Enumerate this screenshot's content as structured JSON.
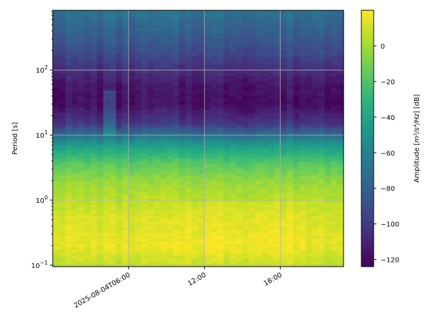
{
  "chart_data": {
    "type": "heatmap",
    "title": "",
    "ylabel": "Period [s]",
    "yscale": "log",
    "ylim": [
      0.095,
      830
    ],
    "y_ticks": [
      {
        "value": 0.1,
        "base": "10",
        "exp": "−1"
      },
      {
        "value": 1,
        "base": "10",
        "exp": "0"
      },
      {
        "value": 10,
        "base": "10",
        "exp": "1"
      },
      {
        "value": 100,
        "base": "10",
        "exp": "2"
      }
    ],
    "x_range_hours": [
      0,
      23
    ],
    "x_ticks": [
      {
        "hour": 6,
        "label": "2025-08-04T06:00"
      },
      {
        "hour": 12,
        "label": "12:00"
      },
      {
        "hour": 18,
        "label": "18:00"
      }
    ],
    "grid": true,
    "colorbar": {
      "label_prefix": "Amplitude [",
      "label_math": "m²/s⁴/Hz",
      "label_suffix": "] [dB]",
      "range": [
        -124,
        20
      ],
      "ticks": [
        -120,
        -100,
        -80,
        -60,
        -40,
        -20,
        0
      ],
      "colormap": "viridis"
    },
    "amplitude_profile": [
      {
        "period": 0.1,
        "db": 6
      },
      {
        "period": 0.2,
        "db": 15
      },
      {
        "period": 0.5,
        "db": 12
      },
      {
        "period": 1,
        "db": 6
      },
      {
        "period": 2,
        "db": -3
      },
      {
        "period": 4,
        "db": -20
      },
      {
        "period": 7,
        "db": -45
      },
      {
        "period": 10,
        "db": -70
      },
      {
        "period": 15,
        "db": -100
      },
      {
        "period": 30,
        "db": -118
      },
      {
        "period": 60,
        "db": -115
      },
      {
        "period": 100,
        "db": -105
      },
      {
        "period": 200,
        "db": -90
      },
      {
        "period": 400,
        "db": -80
      },
      {
        "period": 800,
        "db": -70
      }
    ]
  }
}
